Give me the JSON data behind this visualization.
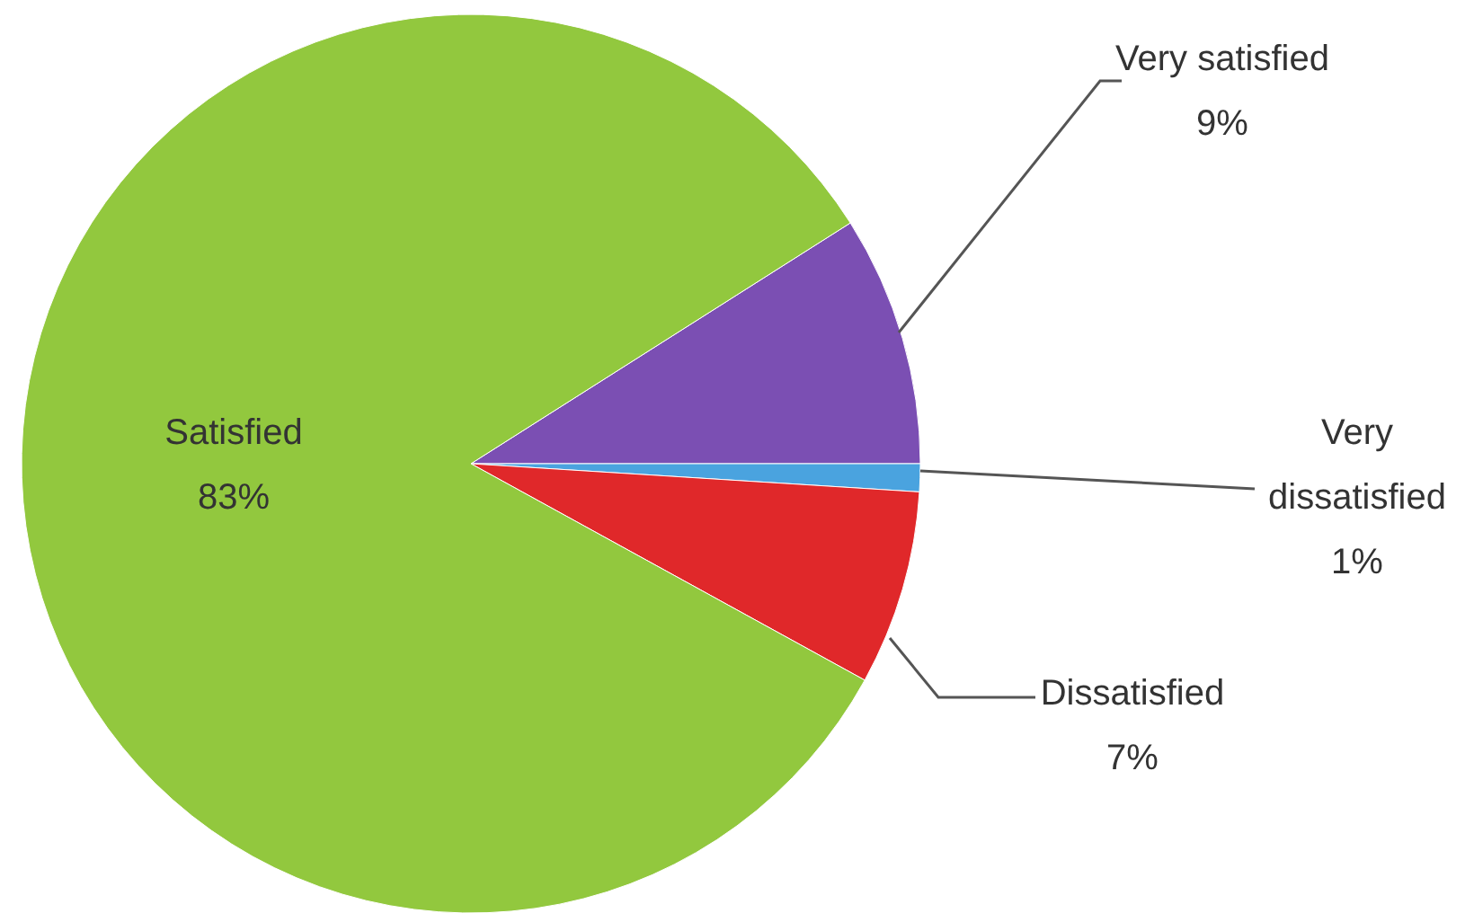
{
  "chart_data": {
    "type": "pie",
    "categories": [
      "Very satisfied",
      "Very dissatisfied",
      "Dissatisfied",
      "Satisfied"
    ],
    "values": [
      9,
      1,
      7,
      83
    ],
    "colors": [
      "#7b4fb3",
      "#4aa3df",
      "#e0282a",
      "#92c83e"
    ],
    "value_labels": [
      "9%",
      "1%",
      "7%",
      "83%"
    ]
  }
}
